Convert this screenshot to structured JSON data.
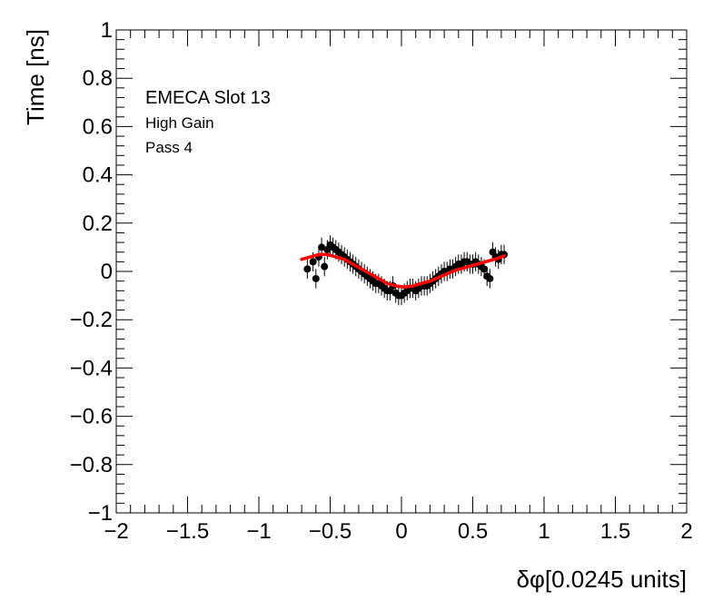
{
  "chart_data": {
    "type": "scatter",
    "xlabel": "δφ[0.0245 units]",
    "ylabel": "Time [ns]",
    "xlim": [
      -2,
      2
    ],
    "ylim": [
      -1,
      1
    ],
    "x_ticks": [
      "−2",
      "−1.5",
      "−1",
      "−0.5",
      "0",
      "0.5",
      "1",
      "1.5",
      "2"
    ],
    "y_ticks": [
      "−1",
      "−0.8",
      "−0.6",
      "−0.4",
      "−0.2",
      "0",
      "0.2",
      "0.4",
      "0.6",
      "0.8",
      "1"
    ],
    "annotations": [
      "EMECA Slot 13",
      "High Gain",
      "Pass 4"
    ],
    "grid": false,
    "marker_color": "#000000",
    "fit_color": "#ff0000",
    "points": {
      "x": [
        -0.66,
        -0.62,
        -0.6,
        -0.58,
        -0.56,
        -0.54,
        -0.52,
        -0.5,
        -0.48,
        -0.46,
        -0.44,
        -0.42,
        -0.4,
        -0.38,
        -0.36,
        -0.34,
        -0.32,
        -0.3,
        -0.28,
        -0.26,
        -0.24,
        -0.22,
        -0.2,
        -0.18,
        -0.16,
        -0.14,
        -0.12,
        -0.1,
        -0.08,
        -0.06,
        -0.04,
        -0.02,
        0.0,
        0.02,
        0.04,
        0.06,
        0.08,
        0.1,
        0.12,
        0.14,
        0.16,
        0.18,
        0.2,
        0.22,
        0.24,
        0.26,
        0.28,
        0.3,
        0.32,
        0.34,
        0.36,
        0.38,
        0.4,
        0.42,
        0.44,
        0.46,
        0.48,
        0.5,
        0.52,
        0.54,
        0.56,
        0.58,
        0.6,
        0.62,
        0.64,
        0.66,
        0.68,
        0.7,
        0.72
      ],
      "y": [
        0.01,
        0.04,
        -0.03,
        0.06,
        0.1,
        0.02,
        0.09,
        0.11,
        0.1,
        0.09,
        0.08,
        0.07,
        0.06,
        0.05,
        0.04,
        0.03,
        0.02,
        0.01,
        0.0,
        -0.01,
        -0.02,
        -0.03,
        -0.04,
        -0.05,
        -0.05,
        -0.06,
        -0.07,
        -0.08,
        -0.08,
        -0.06,
        -0.09,
        -0.1,
        -0.1,
        -0.09,
        -0.08,
        -0.07,
        -0.07,
        -0.08,
        -0.07,
        -0.06,
        -0.06,
        -0.06,
        -0.05,
        -0.04,
        -0.03,
        -0.02,
        -0.01,
        0.0,
        0.0,
        0.01,
        0.01,
        0.02,
        0.03,
        0.03,
        0.04,
        0.04,
        0.03,
        0.03,
        0.04,
        0.03,
        0.02,
        0.01,
        -0.02,
        -0.03,
        0.08,
        0.06,
        0.05,
        0.07,
        0.07
      ],
      "y_error": 0.04
    },
    "fit": {
      "x": [
        -0.7,
        -0.64,
        -0.58,
        -0.52,
        -0.46,
        -0.4,
        -0.34,
        -0.28,
        -0.22,
        -0.16,
        -0.1,
        -0.04,
        0.02,
        0.08,
        0.14,
        0.2,
        0.26,
        0.32,
        0.38,
        0.44,
        0.5,
        0.56,
        0.62,
        0.68,
        0.72
      ],
      "y": [
        0.05,
        0.06,
        0.07,
        0.07,
        0.06,
        0.05,
        0.03,
        0.01,
        -0.01,
        -0.03,
        -0.05,
        -0.06,
        -0.065,
        -0.06,
        -0.05,
        -0.04,
        -0.025,
        -0.01,
        0.005,
        0.015,
        0.025,
        0.035,
        0.045,
        0.055,
        0.065
      ]
    }
  }
}
